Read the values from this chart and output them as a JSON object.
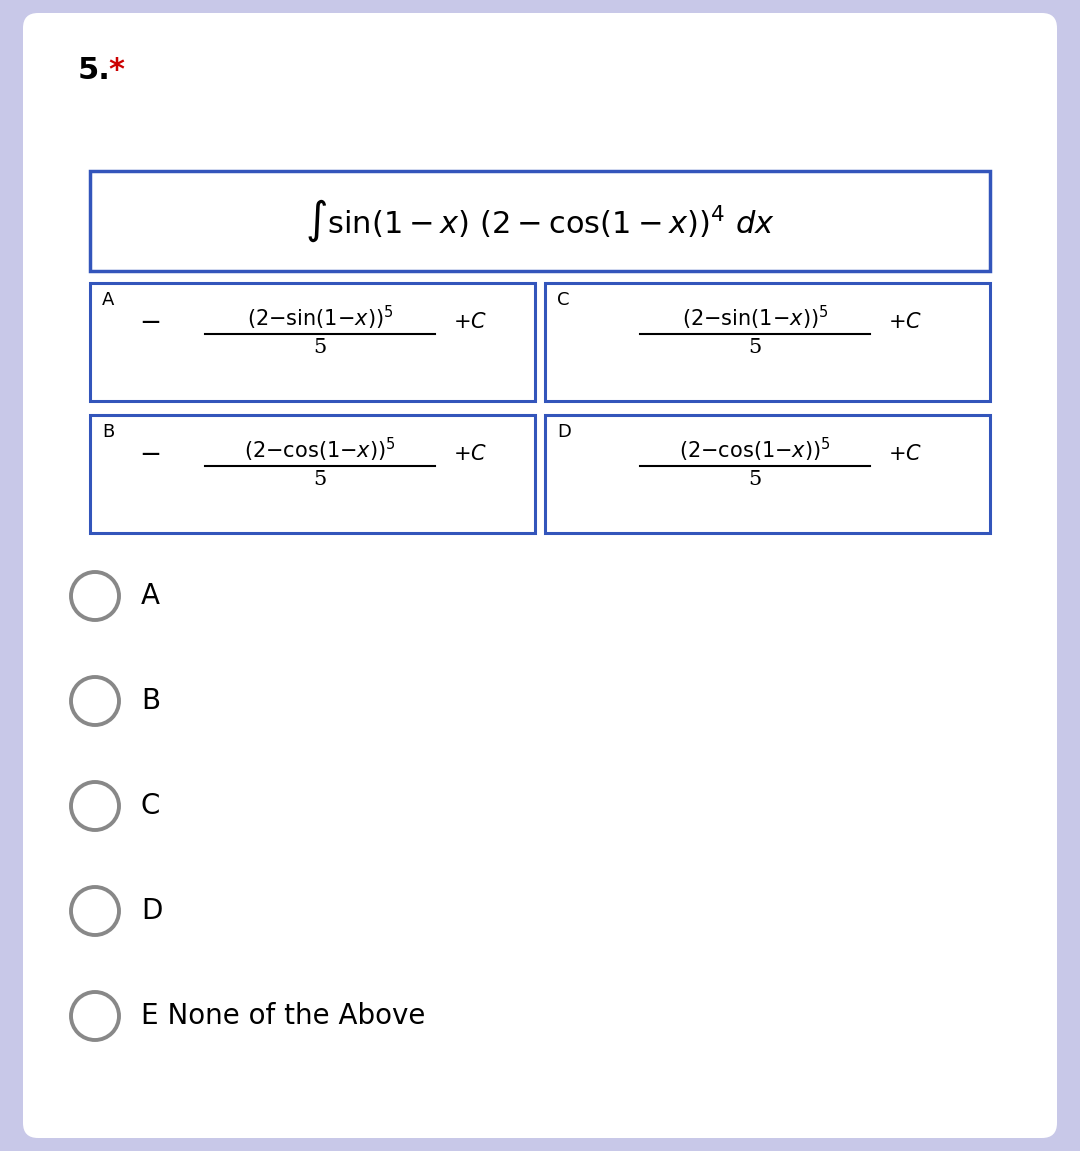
{
  "background_color": "#c8c8e8",
  "card_color": "#ffffff",
  "question_number": "5.",
  "question_star": " *",
  "star_color": "#cc0000",
  "box_border_color": "#3355bb",
  "text_color": "#000000",
  "radio_circle_color": "#888888",
  "radio_options": [
    "A",
    "B",
    "C",
    "D",
    "E None of the Above"
  ],
  "integral_text": "$\\int \\sin(1 - x)\\ (2 - \\cos(1 - x))^4\\ dx$",
  "option_A_sign": "-",
  "option_A_numer": "$(2{-}\\sin(1{-}x))^5$",
  "option_A_denom": "5",
  "option_B_sign": "-",
  "option_B_numer": "$(2{-}\\cos(1{-}x))^5$",
  "option_B_denom": "5",
  "option_C_sign": "",
  "option_C_numer": "$(2{-}\\sin(1{-}x))^5$",
  "option_C_denom": "5",
  "option_D_sign": "",
  "option_D_numer": "$(2{-}\\cos(1{-}x))^5$",
  "option_D_denom": "5",
  "plus_c": "$+C$"
}
